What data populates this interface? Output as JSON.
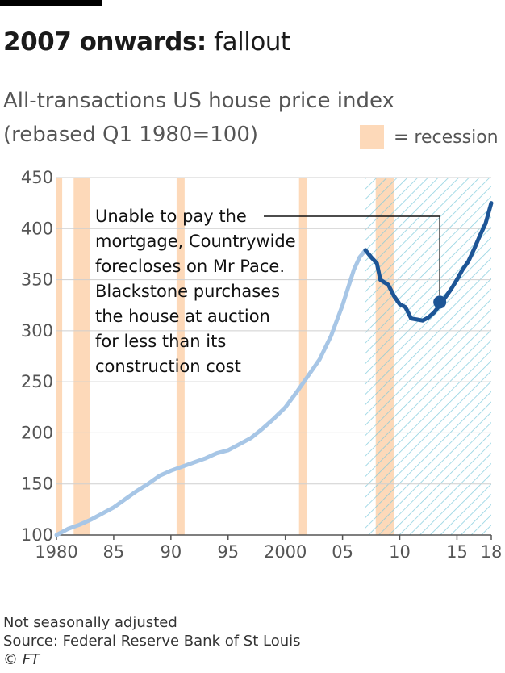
{
  "headline": {
    "bold": "2007 onwards:",
    "rest": " fallout"
  },
  "chart_data": {
    "type": "line",
    "title": "All-transactions US house price index",
    "subtitle": "(rebased Q1 1980=100)",
    "legend": {
      "label": "= recession",
      "color": "#fdd9b9",
      "placement": "top-right"
    },
    "ylim": [
      100,
      450
    ],
    "yticks": [
      100,
      150,
      200,
      250,
      300,
      350,
      400,
      450
    ],
    "xlim": [
      1980,
      2018
    ],
    "xticks": [
      {
        "value": 1980,
        "label": "1980"
      },
      {
        "value": 1985,
        "label": "85"
      },
      {
        "value": 1990,
        "label": "90"
      },
      {
        "value": 1995,
        "label": "95"
      },
      {
        "value": 2000,
        "label": "2000"
      },
      {
        "value": 2005,
        "label": "05"
      },
      {
        "value": 2010,
        "label": "10"
      },
      {
        "value": 2015,
        "label": "15"
      },
      {
        "value": 2018,
        "label": "18"
      }
    ],
    "grid": true,
    "recessions": [
      [
        1980.0,
        1980.5
      ],
      [
        1981.5,
        1982.9
      ],
      [
        1990.5,
        1991.2
      ],
      [
        2001.2,
        2001.9
      ],
      [
        2007.9,
        2009.5
      ]
    ],
    "highlight_period": [
      2007.0,
      2018.0
    ],
    "series": [
      {
        "color": "#a7c6e6",
        "points": [
          [
            1980,
            100
          ],
          [
            1981,
            106
          ],
          [
            1982,
            110
          ],
          [
            1983,
            115
          ],
          [
            1984,
            121
          ],
          [
            1985,
            127
          ],
          [
            1986,
            135
          ],
          [
            1987,
            143
          ],
          [
            1988,
            150
          ],
          [
            1989,
            158
          ],
          [
            1990,
            163
          ],
          [
            1991,
            167
          ],
          [
            1992,
            171
          ],
          [
            1993,
            175
          ],
          [
            1994,
            180
          ],
          [
            1995,
            183
          ],
          [
            1996,
            189
          ],
          [
            1997,
            195
          ],
          [
            1998,
            204
          ],
          [
            1999,
            214
          ],
          [
            2000,
            225
          ],
          [
            2001,
            240
          ],
          [
            2002,
            256
          ],
          [
            2003,
            272
          ],
          [
            2004,
            295
          ],
          [
            2005,
            325
          ],
          [
            2006,
            360
          ],
          [
            2006.5,
            372
          ],
          [
            2007,
            379
          ]
        ]
      },
      {
        "color": "#1d5596",
        "points": [
          [
            2007,
            379
          ],
          [
            2007.5,
            372
          ],
          [
            2008,
            366
          ],
          [
            2008.3,
            350
          ],
          [
            2009,
            345
          ],
          [
            2009.5,
            334
          ],
          [
            2010,
            326
          ],
          [
            2010.5,
            323
          ],
          [
            2011,
            312
          ],
          [
            2011.5,
            311
          ],
          [
            2012,
            310
          ],
          [
            2012.5,
            313
          ],
          [
            2013,
            318
          ],
          [
            2013.5,
            325
          ],
          [
            2014,
            333
          ],
          [
            2014.5,
            341
          ],
          [
            2015,
            350
          ],
          [
            2015.5,
            360
          ],
          [
            2016,
            368
          ],
          [
            2016.5,
            380
          ],
          [
            2017,
            393
          ],
          [
            2017.5,
            405
          ],
          [
            2018,
            425
          ]
        ]
      }
    ],
    "annotation": {
      "lines": [
        "Unable to pay the",
        "mortgage, Countrywide",
        "forecloses on Mr Pace.",
        "Blackstone purchases",
        "the house at auction",
        "for less than its",
        "construction cost"
      ],
      "point": [
        2013.5,
        328
      ]
    }
  },
  "notes": {
    "line1": "Not seasonally adjusted",
    "line2": "Source: Federal Reserve Bank of St Louis",
    "line3": "© FT"
  }
}
